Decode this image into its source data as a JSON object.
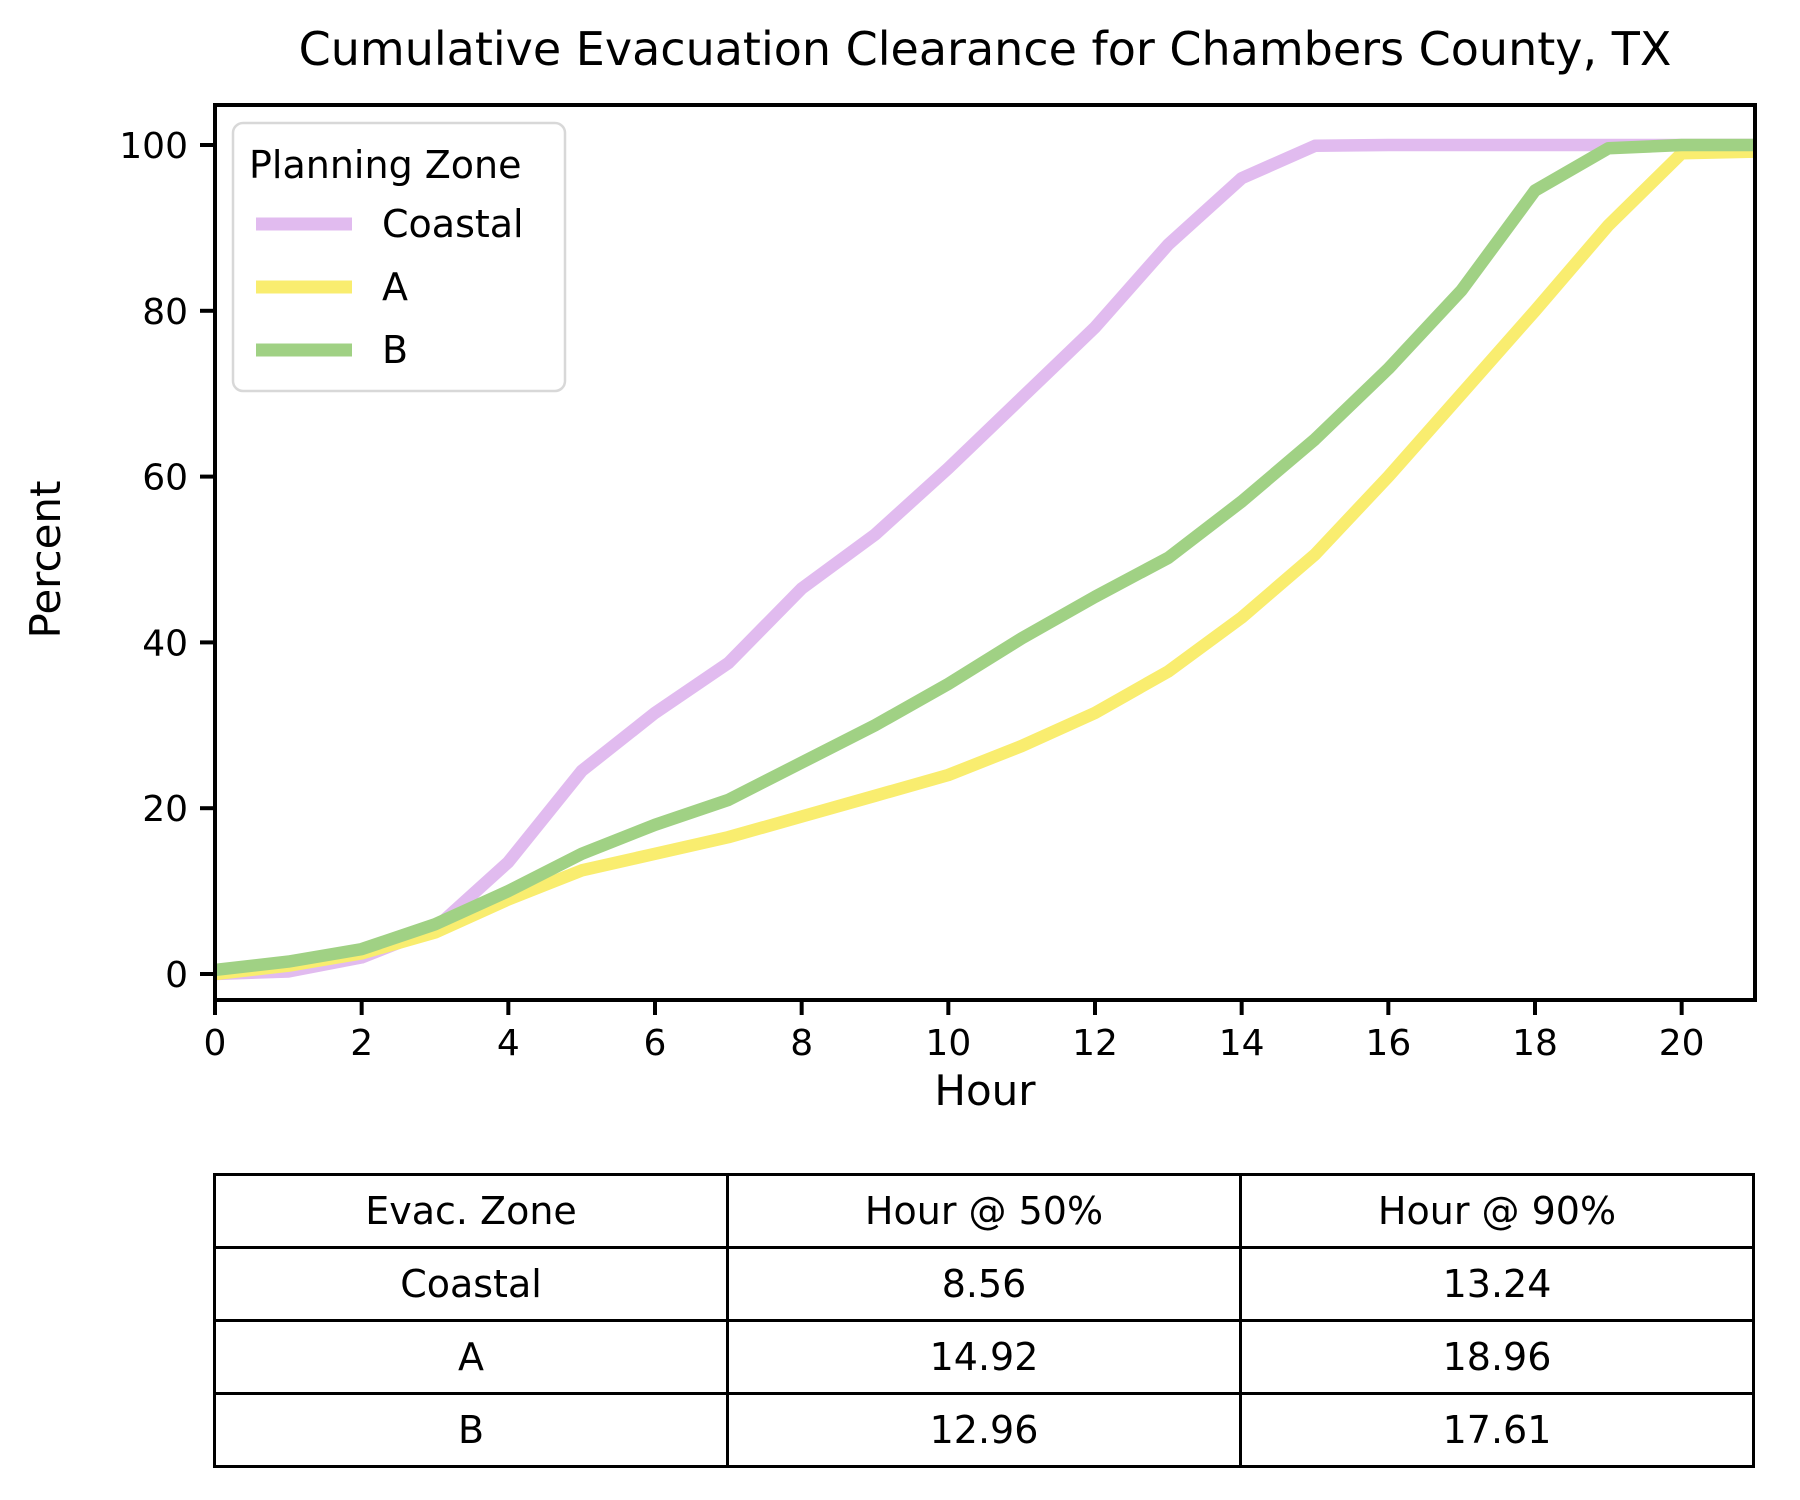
{
  "chart_data": {
    "type": "line",
    "title": "Cumulative Evacuation Clearance for Chambers County, TX",
    "xlabel": "Hour",
    "ylabel": "Percent",
    "xlim": [
      0,
      21
    ],
    "ylim": [
      -3,
      105
    ],
    "x_ticks": [
      0,
      2,
      4,
      6,
      8,
      10,
      12,
      14,
      16,
      18,
      20
    ],
    "y_ticks": [
      0,
      20,
      40,
      60,
      80,
      100
    ],
    "grid": false,
    "legend": {
      "title": "Planning Zone",
      "position": "upper-left",
      "border_color": "#D8D8D8"
    },
    "x": [
      0,
      1,
      2,
      3,
      4,
      5,
      6,
      7,
      8,
      9,
      10,
      11,
      12,
      13,
      14,
      15,
      16,
      17,
      18,
      19,
      20,
      21
    ],
    "series": [
      {
        "name": "Coastal",
        "color": "#E1BBEF",
        "values": [
          0,
          0.3,
          2,
          5.5,
          13.5,
          24.5,
          31.5,
          37.5,
          46.5,
          53,
          61,
          69.5,
          78,
          88,
          96,
          99.9,
          100,
          100,
          100,
          100,
          100,
          100
        ]
      },
      {
        "name": "A",
        "color": "#F9ED6F",
        "values": [
          0,
          1,
          2.5,
          5,
          9,
          12.5,
          14.5,
          16.5,
          19,
          21.5,
          24,
          27.5,
          31.5,
          36.5,
          43,
          50.6,
          60,
          70,
          80,
          90.3,
          99,
          99.2
        ]
      },
      {
        "name": "B",
        "color": "#A0D184",
        "values": [
          0.5,
          1.5,
          3,
          6,
          10,
          14.5,
          18,
          21,
          25.5,
          30,
          35,
          40.5,
          45.5,
          50.2,
          57,
          64.5,
          73,
          82.5,
          94.5,
          99.6,
          100,
          100
        ]
      }
    ]
  },
  "table": {
    "headers": [
      "Evac. Zone",
      "Hour @ 50%",
      "Hour @ 90%"
    ],
    "rows": [
      [
        "Coastal",
        "8.56",
        "13.24"
      ],
      [
        "A",
        "14.92",
        "18.96"
      ],
      [
        "B",
        "12.96",
        "17.61"
      ]
    ]
  }
}
